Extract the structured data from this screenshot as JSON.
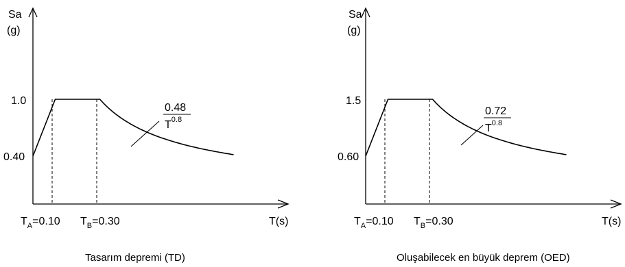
{
  "chart_data": [
    {
      "type": "line",
      "title": "Tasarım depremi (TD)",
      "ylabel_line1": "Sa",
      "ylabel_line2": "(g)",
      "xlabel": "T(s)",
      "y_start": "0.40",
      "y_plateau": "1.0",
      "ta_label": {
        "base": "T",
        "sub": "A",
        "rest": "=0.10"
      },
      "tb_label": {
        "base": "T",
        "sub": "B",
        "rest": "=0.30"
      },
      "formula": {
        "numerator": "0.48",
        "base": "T",
        "exponent": "0.8"
      },
      "values": {
        "Sa0": 0.4,
        "SaMax": 1.0,
        "TA": 0.1,
        "TB": 0.3,
        "coef": 0.48,
        "exponent": 0.8,
        "Tend": 0.9
      }
    },
    {
      "type": "line",
      "title": "Oluşabilecek en büyük deprem (OED)",
      "ylabel_line1": "Sa",
      "ylabel_line2": "(g)",
      "xlabel": "T(s)",
      "y_start": "0.60",
      "y_plateau": "1.5",
      "ta_label": {
        "base": "T",
        "sub": "A",
        "rest": "=0.10"
      },
      "tb_label": {
        "base": "T",
        "sub": "B",
        "rest": "=0.30"
      },
      "formula": {
        "numerator": "0.72",
        "base": "T",
        "exponent": "0.8"
      },
      "values": {
        "Sa0": 0.6,
        "SaMax": 1.5,
        "TA": 0.1,
        "TB": 0.3,
        "coef": 0.72,
        "exponent": 0.8,
        "Tend": 0.9
      }
    }
  ]
}
